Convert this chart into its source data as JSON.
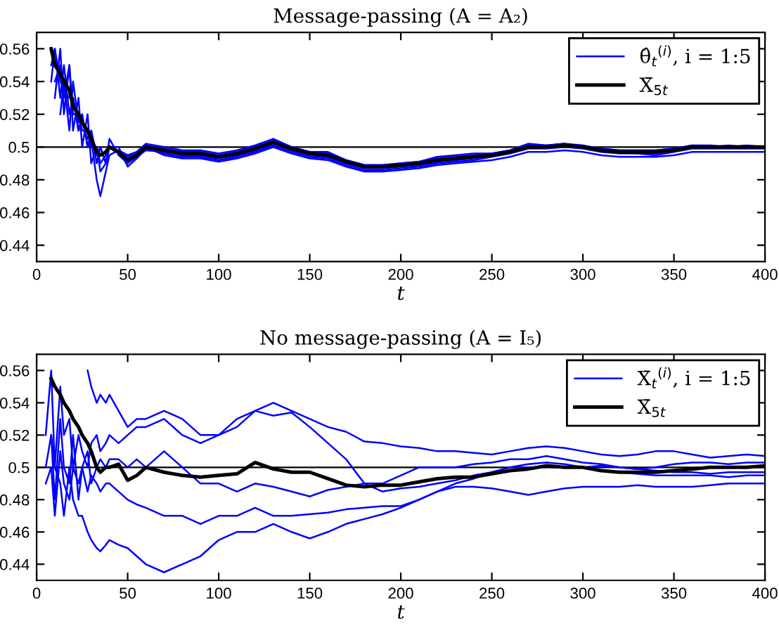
{
  "chart_data": [
    {
      "type": "line",
      "title": "Message-passing (A = A₂)",
      "xlabel": "t",
      "xlim": [
        0,
        400
      ],
      "xticks": [
        0,
        50,
        100,
        150,
        200,
        250,
        300,
        350,
        400
      ],
      "ylim": [
        0.43,
        0.57
      ],
      "yticks": [
        0.44,
        0.46,
        0.48,
        0.5,
        0.52,
        0.54,
        0.56
      ],
      "grid": false,
      "legend": "top right",
      "ref_lines": [
        {
          "axis": "y",
          "value": 0.5,
          "color": "#000000"
        }
      ],
      "x": [
        8,
        10,
        13,
        15,
        18,
        20,
        23,
        25,
        28,
        30,
        33,
        35,
        38,
        40,
        45,
        50,
        55,
        60,
        70,
        80,
        90,
        100,
        110,
        120,
        130,
        140,
        150,
        160,
        170,
        180,
        190,
        200,
        210,
        220,
        230,
        240,
        250,
        260,
        270,
        280,
        290,
        300,
        310,
        320,
        330,
        340,
        350,
        360,
        370,
        380,
        390,
        400
      ],
      "series": [
        {
          "name": "θ̂$_{t}$$^{(i)}$, i = 1:5",
          "color": "#0000ff",
          "values": [
            0.55,
            0.56,
            0.53,
            0.55,
            0.52,
            0.53,
            0.51,
            0.52,
            0.5,
            0.51,
            0.49,
            0.5,
            0.49,
            0.505,
            0.495,
            0.49,
            0.497,
            0.502,
            0.5,
            0.498,
            0.498,
            0.496,
            0.498,
            0.501,
            0.505,
            0.5,
            0.497,
            0.497,
            0.492,
            0.489,
            0.489,
            0.49,
            0.491,
            0.494,
            0.495,
            0.496,
            0.496,
            0.498,
            0.502,
            0.501,
            0.502,
            0.5,
            0.499,
            0.498,
            0.498,
            0.498,
            0.499,
            0.501,
            0.5,
            0.501,
            0.5,
            0.5
          ]
        },
        {
          "color": "#0000ff",
          "values": [
            null,
            0.53,
            0.56,
            0.52,
            0.55,
            0.51,
            0.53,
            0.5,
            0.52,
            0.49,
            0.5,
            0.485,
            0.49,
            0.5,
            0.5,
            0.488,
            0.493,
            0.499,
            0.496,
            0.494,
            0.494,
            0.492,
            0.494,
            0.497,
            0.501,
            0.497,
            0.494,
            0.493,
            0.489,
            0.486,
            0.486,
            0.487,
            0.488,
            0.49,
            0.491,
            0.492,
            0.494,
            0.496,
            0.499,
            0.499,
            0.5,
            0.499,
            0.497,
            0.496,
            0.496,
            0.495,
            0.497,
            0.499,
            0.499,
            0.499,
            0.499,
            0.499
          ]
        },
        {
          "color": "#0000ff",
          "values": [
            null,
            null,
            0.52,
            0.54,
            0.51,
            0.54,
            0.515,
            0.52,
            0.5,
            0.505,
            0.48,
            0.47,
            0.485,
            0.495,
            0.498,
            0.495,
            0.497,
            0.501,
            0.499,
            0.497,
            0.497,
            0.495,
            0.497,
            0.5,
            0.504,
            0.5,
            0.497,
            0.496,
            0.492,
            0.489,
            0.489,
            0.49,
            0.491,
            0.493,
            0.494,
            0.495,
            0.496,
            0.498,
            0.501,
            0.501,
            0.502,
            0.501,
            0.499,
            0.498,
            0.498,
            0.498,
            0.499,
            0.501,
            0.501,
            0.5,
            0.501,
            0.5
          ]
        },
        {
          "color": "#0000ff",
          "values": [
            null,
            0.54,
            0.55,
            0.53,
            0.55,
            0.52,
            0.52,
            0.51,
            0.51,
            0.5,
            0.5,
            0.49,
            0.495,
            0.5,
            0.496,
            0.49,
            0.494,
            0.498,
            0.497,
            0.495,
            0.495,
            0.493,
            0.495,
            0.498,
            0.502,
            0.498,
            0.495,
            0.494,
            0.49,
            0.487,
            0.487,
            0.488,
            0.489,
            0.491,
            0.492,
            0.493,
            0.495,
            0.497,
            0.5,
            0.5,
            0.5,
            0.5,
            0.498,
            0.497,
            0.496,
            0.496,
            0.498,
            0.5,
            0.5,
            0.5,
            0.5,
            0.5
          ]
        },
        {
          "color": "#0000ff",
          "values": [
            0.54,
            0.56,
            0.54,
            0.535,
            0.53,
            0.53,
            0.51,
            0.515,
            0.505,
            0.51,
            0.495,
            0.5,
            0.49,
            0.5,
            0.497,
            0.494,
            0.496,
            0.5,
            0.495,
            0.493,
            0.493,
            0.491,
            0.493,
            0.496,
            0.5,
            0.496,
            0.493,
            0.492,
            0.488,
            0.485,
            0.485,
            0.486,
            0.487,
            0.489,
            0.49,
            0.491,
            0.492,
            0.494,
            0.497,
            0.497,
            0.498,
            0.497,
            0.495,
            0.494,
            0.494,
            0.494,
            0.495,
            0.497,
            0.497,
            0.497,
            0.497,
            0.497
          ]
        },
        {
          "name": "X̄$_{5t}$",
          "color": "#000000",
          "values": [
            0.56,
            0.55,
            0.545,
            0.54,
            0.535,
            0.525,
            0.52,
            0.515,
            0.51,
            0.505,
            0.497,
            0.495,
            0.497,
            0.5,
            0.497,
            0.492,
            0.495,
            0.5,
            0.498,
            0.496,
            0.496,
            0.494,
            0.496,
            0.499,
            0.503,
            0.499,
            0.496,
            0.495,
            0.491,
            0.488,
            0.488,
            0.489,
            0.49,
            0.492,
            0.493,
            0.494,
            0.495,
            0.497,
            0.5,
            0.5,
            0.501,
            0.5,
            0.498,
            0.497,
            0.497,
            0.497,
            0.498,
            0.5,
            0.5,
            0.5,
            0.5,
            0.5
          ]
        }
      ]
    },
    {
      "type": "line",
      "title": "No message-passing (A = I₅)",
      "xlabel": "t",
      "xlim": [
        0,
        400
      ],
      "xticks": [
        0,
        50,
        100,
        150,
        200,
        250,
        300,
        350,
        400
      ],
      "ylim": [
        0.43,
        0.57
      ],
      "yticks": [
        0.44,
        0.46,
        0.48,
        0.5,
        0.52,
        0.54,
        0.56
      ],
      "grid": false,
      "legend": "top right",
      "ref_lines": [
        {
          "axis": "y",
          "value": 0.5,
          "color": "#000000"
        }
      ],
      "x": [
        5,
        8,
        10,
        13,
        15,
        18,
        20,
        23,
        25,
        28,
        30,
        33,
        35,
        38,
        40,
        45,
        50,
        55,
        60,
        70,
        80,
        90,
        100,
        110,
        120,
        130,
        140,
        150,
        160,
        170,
        180,
        190,
        200,
        210,
        220,
        230,
        240,
        250,
        260,
        270,
        280,
        290,
        300,
        310,
        320,
        330,
        340,
        350,
        360,
        370,
        380,
        390,
        400
      ],
      "series": [
        {
          "name": "X̄$_{t}$$^{(i)}$, i = 1:5",
          "color": "#0000ff",
          "values": [
            null,
            null,
            null,
            null,
            null,
            null,
            null,
            null,
            null,
            0.56,
            0.55,
            0.54,
            0.545,
            0.54,
            0.545,
            0.535,
            0.525,
            0.53,
            0.53,
            0.535,
            0.53,
            0.52,
            0.52,
            0.525,
            0.535,
            0.54,
            0.535,
            0.53,
            0.525,
            0.522,
            0.516,
            0.515,
            0.513,
            0.512,
            0.51,
            0.51,
            0.509,
            0.508,
            0.51,
            0.512,
            0.513,
            0.512,
            0.51,
            0.508,
            0.507,
            0.508,
            0.51,
            0.51,
            0.508,
            0.506,
            0.507,
            0.508,
            0.507
          ]
        },
        {
          "color": "#0000ff",
          "values": [
            0.52,
            0.56,
            0.5,
            0.55,
            0.52,
            0.53,
            0.5,
            0.52,
            0.51,
            0.5,
            0.515,
            0.52,
            0.51,
            0.515,
            0.52,
            0.515,
            0.52,
            0.525,
            0.525,
            0.53,
            0.52,
            0.515,
            0.52,
            0.53,
            0.535,
            0.532,
            0.534,
            0.525,
            0.515,
            0.505,
            0.49,
            0.485,
            0.487,
            0.488,
            0.49,
            0.492,
            0.495,
            0.497,
            0.5,
            0.502,
            0.503,
            0.502,
            0.5,
            0.501,
            0.5,
            0.499,
            0.5,
            0.502,
            0.503,
            0.503,
            0.502,
            0.503,
            0.503
          ]
        },
        {
          "color": "#0000ff",
          "values": [
            0.5,
            0.52,
            0.48,
            0.53,
            0.5,
            0.49,
            0.52,
            0.48,
            0.5,
            0.51,
            0.49,
            0.5,
            0.505,
            0.5,
            0.505,
            0.505,
            0.5,
            0.505,
            0.5,
            0.51,
            0.5,
            0.49,
            0.49,
            0.485,
            0.49,
            0.488,
            0.485,
            0.482,
            0.486,
            0.488,
            0.49,
            0.49,
            0.495,
            0.5,
            0.5,
            0.5,
            0.502,
            0.503,
            0.505,
            0.505,
            0.507,
            0.505,
            0.503,
            0.502,
            0.5,
            0.499,
            0.498,
            0.497,
            0.497,
            0.496,
            0.497,
            0.497,
            0.497
          ]
        },
        {
          "color": "#0000ff",
          "values": [
            0.49,
            0.5,
            0.47,
            0.51,
            0.49,
            0.48,
            0.5,
            0.49,
            0.5,
            0.485,
            0.495,
            0.49,
            0.485,
            0.49,
            0.49,
            0.485,
            0.48,
            0.477,
            0.475,
            0.47,
            0.47,
            0.465,
            0.47,
            0.47,
            0.475,
            0.47,
            0.47,
            0.471,
            0.472,
            0.474,
            0.475,
            0.476,
            0.476,
            0.48,
            0.485,
            0.488,
            0.488,
            0.487,
            0.485,
            0.483,
            0.485,
            0.487,
            0.488,
            0.488,
            0.488,
            0.489,
            0.488,
            0.488,
            0.488,
            0.489,
            0.49,
            0.49,
            0.49
          ]
        },
        {
          "color": "#0000ff",
          "values": [
            null,
            0.52,
            0.5,
            0.49,
            0.47,
            0.5,
            0.48,
            0.47,
            0.47,
            0.46,
            0.455,
            0.45,
            0.448,
            0.452,
            0.455,
            0.452,
            0.45,
            0.445,
            0.44,
            0.435,
            0.44,
            0.445,
            0.455,
            0.46,
            0.46,
            0.465,
            0.46,
            0.456,
            0.46,
            0.465,
            0.468,
            0.471,
            0.475,
            0.48,
            0.485,
            0.49,
            0.493,
            0.497,
            0.5,
            0.5,
            0.5,
            0.5,
            0.5,
            0.498,
            0.497,
            0.496,
            0.495,
            0.495,
            0.495,
            0.495,
            0.494,
            0.495,
            0.495
          ]
        },
        {
          "name": "X̄$_{5t}$",
          "color": "#000000",
          "values": [
            null,
            0.555,
            0.55,
            0.545,
            0.54,
            0.535,
            0.53,
            0.525,
            0.52,
            0.515,
            0.51,
            0.5,
            0.497,
            0.5,
            0.5,
            0.502,
            0.492,
            0.495,
            0.5,
            0.497,
            0.495,
            0.494,
            0.495,
            0.496,
            0.503,
            0.499,
            0.497,
            0.497,
            0.493,
            0.489,
            0.488,
            0.489,
            0.489,
            0.491,
            0.493,
            0.494,
            0.494,
            0.496,
            0.498,
            0.499,
            0.501,
            0.5,
            0.5,
            0.498,
            0.497,
            0.497,
            0.497,
            0.498,
            0.499,
            0.5,
            0.5,
            0.5,
            0.501
          ]
        }
      ]
    }
  ]
}
